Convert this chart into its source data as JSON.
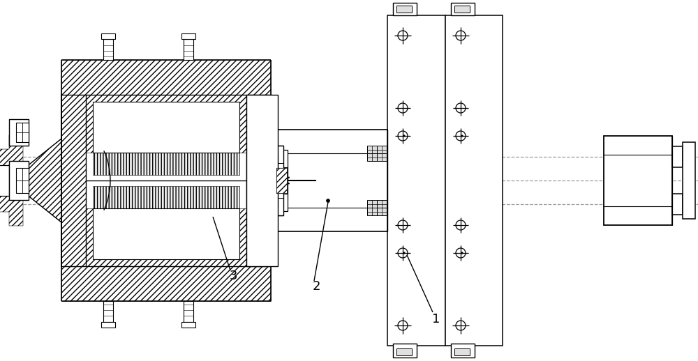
{
  "bg_color": "#ffffff",
  "line_color": "#000000",
  "figsize": [
    10.0,
    5.18
  ],
  "dpi": 100,
  "label_1": "1",
  "label_2": "2",
  "label_3": "3"
}
